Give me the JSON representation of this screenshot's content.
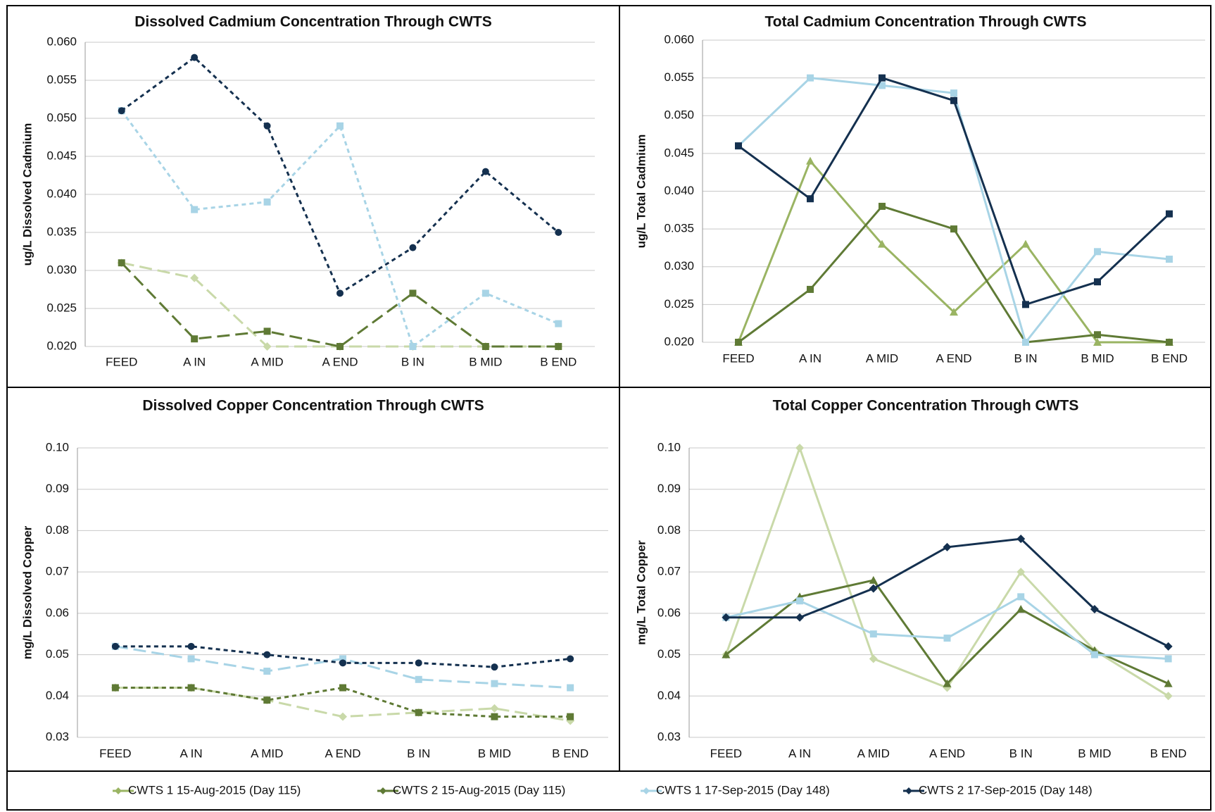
{
  "chart_data": [
    {
      "type": "line",
      "title": "Dissolved Cadmium Concentration Through CWTS",
      "y_label": "ug/L Dissolved Cadmium",
      "categories": [
        "FEED",
        "A IN",
        "A MID",
        "A END",
        "B IN",
        "B MID",
        "B END"
      ],
      "ylim": [
        0.02,
        0.06
      ],
      "yticks": [
        {
          "value": 0.02,
          "label": "0.020"
        },
        0.025,
        {
          "value": 0.03,
          "label": "0.030"
        },
        0.035,
        {
          "value": 0.04,
          "label": "0.040"
        },
        0.045,
        {
          "value": 0.05,
          "label": "0.050"
        },
        0.055,
        {
          "value": 0.06,
          "label": "0.060"
        }
      ],
      "grid": true,
      "series": [
        {
          "color": "#c9d9a9",
          "line_style": "long-dash",
          "marker": "diamond",
          "values": [
            0.031,
            0.029,
            0.02,
            0.02,
            0.02,
            0.02,
            0.02
          ]
        },
        {
          "color": "#5f7a35",
          "line_style": "long-dash",
          "marker": "square",
          "values": [
            0.031,
            0.021,
            0.022,
            0.02,
            0.027,
            0.02,
            0.02
          ]
        },
        {
          "color": "#a8d4e6",
          "line_style": "dash",
          "marker": "square",
          "values": [
            0.051,
            0.038,
            0.039,
            0.049,
            0.02,
            0.027,
            0.023
          ]
        },
        {
          "color": "#14304f",
          "line_style": "dash",
          "marker": "circle",
          "values": [
            0.051,
            0.058,
            0.049,
            0.027,
            0.033,
            0.043,
            0.035
          ]
        }
      ]
    },
    {
      "type": "line",
      "title": "Total Cadmium Concentration Through CWTS",
      "y_label": "ug/L Total Cadmium",
      "categories": [
        "FEED",
        "A IN",
        "A MID",
        "A END",
        "B IN",
        "B MID",
        "B END"
      ],
      "ylim": [
        0.02,
        0.06
      ],
      "yticks": [
        {
          "value": 0.02,
          "label": "0.020"
        },
        0.025,
        {
          "value": 0.03,
          "label": "0.030"
        },
        0.035,
        {
          "value": 0.04,
          "label": "0.040"
        },
        0.045,
        {
          "value": 0.05,
          "label": "0.050"
        },
        0.055,
        {
          "value": 0.06,
          "label": "0.060"
        }
      ],
      "grid": true,
      "series": [
        {
          "color": "#9ab463",
          "line_style": "solid",
          "marker": "triangle",
          "values": [
            0.02,
            0.044,
            0.033,
            0.024,
            0.033,
            0.02,
            0.02
          ]
        },
        {
          "color": "#5f7a35",
          "line_style": "solid",
          "marker": "square",
          "values": [
            0.02,
            0.027,
            0.038,
            0.035,
            0.02,
            0.021,
            0.02
          ]
        },
        {
          "color": "#a8d4e6",
          "line_style": "solid",
          "marker": "square",
          "values": [
            0.046,
            0.055,
            0.054,
            0.053,
            0.02,
            0.032,
            0.031
          ]
        },
        {
          "color": "#14304f",
          "line_style": "solid",
          "marker": "square",
          "values": [
            0.046,
            0.039,
            0.055,
            0.052,
            0.025,
            0.028,
            0.037
          ]
        }
      ]
    },
    {
      "type": "line",
      "title": "Dissolved Copper Concentration Through CWTS",
      "y_label": "mg/L Dissolved Copper",
      "categories": [
        "FEED",
        "A IN",
        "A MID",
        "A END",
        "B IN",
        "B MID",
        "B END"
      ],
      "ylim": [
        0.03,
        0.1
      ],
      "yticks": [
        0.03,
        0.04,
        0.05,
        0.06,
        0.07,
        0.08,
        0.09,
        {
          "value": 0.1,
          "label": "0.10"
        }
      ],
      "grid": true,
      "series": [
        {
          "color": "#c9d9a9",
          "line_style": "long-dash",
          "marker": "diamond",
          "values": [
            0.042,
            0.042,
            0.039,
            0.035,
            0.036,
            0.037,
            0.034
          ]
        },
        {
          "color": "#5f7a35",
          "line_style": "dash",
          "marker": "square",
          "values": [
            0.042,
            0.042,
            0.039,
            0.042,
            0.036,
            0.035,
            0.035
          ]
        },
        {
          "color": "#a8d4e6",
          "line_style": "long-dash",
          "marker": "square",
          "values": [
            0.052,
            0.049,
            0.046,
            0.049,
            0.044,
            0.043,
            0.042
          ]
        },
        {
          "color": "#14304f",
          "line_style": "dash",
          "marker": "circle",
          "values": [
            0.052,
            0.052,
            0.05,
            0.048,
            0.048,
            0.047,
            0.049
          ]
        }
      ]
    },
    {
      "type": "line",
      "title": "Total Copper Concentration Through CWTS",
      "y_label": "mg/L Total Copper",
      "categories": [
        "FEED",
        "A IN",
        "A MID",
        "A END",
        "B IN",
        "B MID",
        "B END"
      ],
      "ylim": [
        0.03,
        0.1
      ],
      "yticks": [
        0.03,
        0.04,
        0.05,
        0.06,
        0.07,
        0.08,
        0.09,
        {
          "value": 0.1,
          "label": "0.10"
        }
      ],
      "grid": true,
      "series": [
        {
          "color": "#c9d9a9",
          "line_style": "solid",
          "marker": "diamond",
          "values": [
            0.05,
            0.1,
            0.049,
            0.042,
            0.07,
            0.051,
            0.04
          ]
        },
        {
          "color": "#5f7a35",
          "line_style": "solid",
          "marker": "triangle",
          "values": [
            0.05,
            0.064,
            0.068,
            0.043,
            0.061,
            0.051,
            0.043
          ]
        },
        {
          "color": "#a8d4e6",
          "line_style": "solid",
          "marker": "square",
          "values": [
            0.059,
            0.063,
            0.055,
            0.054,
            0.064,
            0.05,
            0.049
          ]
        },
        {
          "color": "#14304f",
          "line_style": "solid",
          "marker": "diamond",
          "values": [
            0.059,
            0.059,
            0.066,
            0.076,
            0.078,
            0.061,
            0.052
          ]
        }
      ]
    }
  ],
  "legend": {
    "entries": [
      {
        "name": "CWTS 1 15-Aug-2015 (Day 115)",
        "color": "#9ab463"
      },
      {
        "name": "CWTS 2 15-Aug-2015 (Day 115)",
        "color": "#5f7a35"
      },
      {
        "name": "CWTS 1 17-Sep-2015 (Day 148)",
        "color": "#a8d4e6"
      },
      {
        "name": "CWTS 2 17-Sep-2015 (Day 148)",
        "color": "#14304f"
      }
    ]
  }
}
